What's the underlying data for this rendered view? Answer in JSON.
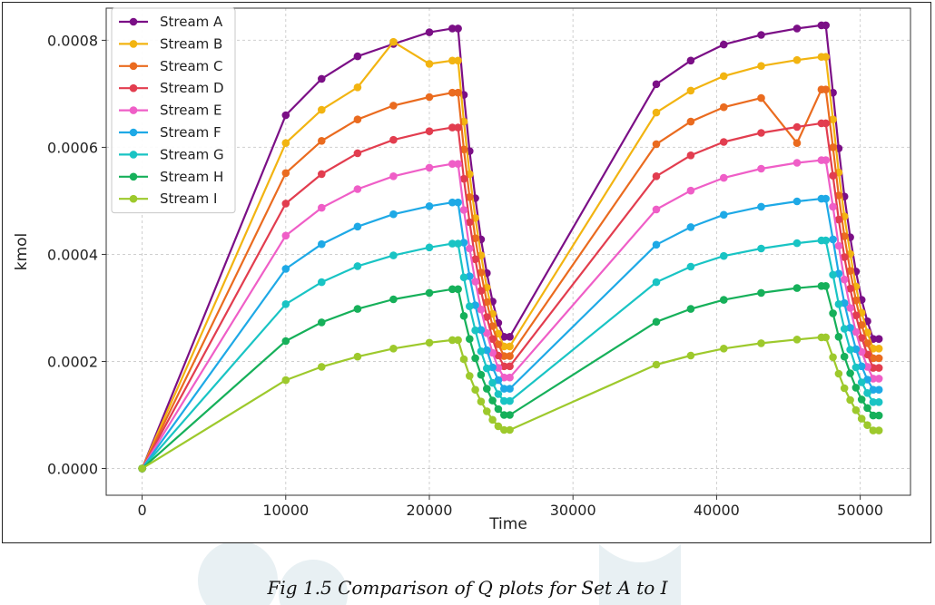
{
  "caption": "Fig 1.5 Comparison of Q plots for Set A to I",
  "chart_data": {
    "type": "line",
    "title": "",
    "xlabel": "Time",
    "ylabel": "kmol",
    "xlim": [
      -2500,
      53500
    ],
    "ylim": [
      -5e-05,
      0.00086
    ],
    "xticks": [
      0,
      10000,
      20000,
      30000,
      40000,
      50000
    ],
    "yticks": [
      0.0,
      0.0002,
      0.0004,
      0.0006,
      0.0008
    ],
    "ytick_labels": [
      "0.0000",
      "0.0002",
      "0.0004",
      "0.0006",
      "0.0008"
    ],
    "grid": true,
    "legend_position": "top-left",
    "x": [
      0,
      10000,
      12500,
      15000,
      17500,
      20000,
      21600,
      22000,
      22400,
      22800,
      23200,
      23600,
      24000,
      24400,
      24800,
      25200,
      25600,
      35800,
      38200,
      40500,
      43100,
      45600,
      47300,
      47600,
      48100,
      48500,
      48900,
      49300,
      49700,
      50100,
      50500,
      50900,
      51300
    ],
    "series": [
      {
        "name": "Stream A",
        "color": "#7b0f86",
        "values": [
          0,
          0.00066,
          0.000728,
          0.00077,
          0.000793,
          0.000815,
          0.000822,
          0.000822,
          0.000698,
          0.000593,
          0.000505,
          0.000428,
          0.000365,
          0.000312,
          0.000272,
          0.000246,
          0.000246,
          0.000718,
          0.000762,
          0.000792,
          0.00081,
          0.000822,
          0.000828,
          0.000828,
          0.000702,
          0.000598,
          0.000508,
          0.000432,
          0.000368,
          0.000315,
          0.000275,
          0.000242,
          0.000242
        ]
      },
      {
        "name": "Stream B",
        "color": "#f2b411",
        "values": [
          0,
          0.000608,
          0.00067,
          0.000712,
          0.000797,
          0.000756,
          0.000762,
          0.000762,
          0.000648,
          0.00055,
          0.000468,
          0.000398,
          0.000338,
          0.000289,
          0.000252,
          0.000228,
          0.000228,
          0.000665,
          0.000706,
          0.000733,
          0.000752,
          0.000763,
          0.000769,
          0.000769,
          0.000652,
          0.000553,
          0.000471,
          0.000401,
          0.00034,
          0.000291,
          0.000254,
          0.000224,
          0.000224
        ]
      },
      {
        "name": "Stream C",
        "color": "#ea6b1f",
        "values": [
          0,
          0.000552,
          0.000612,
          0.000652,
          0.000678,
          0.000694,
          0.000702,
          0.000702,
          0.000596,
          0.000507,
          0.00043,
          0.000366,
          0.000311,
          0.000266,
          0.000232,
          0.00021,
          0.00021,
          0.000606,
          0.000648,
          0.000675,
          0.000692,
          0.000608,
          0.000708,
          0.000708,
          0.0006,
          0.00051,
          0.000434,
          0.000369,
          0.000314,
          0.000268,
          0.000234,
          0.000206,
          0.000206
        ]
      },
      {
        "name": "Stream D",
        "color": "#e23d4f",
        "values": [
          0,
          0.000495,
          0.00055,
          0.000589,
          0.000614,
          0.00063,
          0.000637,
          0.000637,
          0.000541,
          0.00046,
          0.000391,
          0.000332,
          0.000283,
          0.000242,
          0.000211,
          0.000191,
          0.000191,
          0.000546,
          0.000585,
          0.00061,
          0.000627,
          0.000638,
          0.000645,
          0.000645,
          0.000547,
          0.000465,
          0.000395,
          0.000336,
          0.000286,
          0.000244,
          0.000213,
          0.000188,
          0.000188
        ]
      },
      {
        "name": "Stream E",
        "color": "#ef5ec7",
        "values": [
          0,
          0.000435,
          0.000487,
          0.000522,
          0.000546,
          0.000562,
          0.000569,
          0.000569,
          0.000483,
          0.000411,
          0.000349,
          0.000297,
          0.000253,
          0.000216,
          0.000188,
          0.00017,
          0.00017,
          0.000484,
          0.000519,
          0.000543,
          0.00056,
          0.000571,
          0.000576,
          0.000576,
          0.000489,
          0.000416,
          0.000353,
          0.0003,
          0.000255,
          0.000218,
          0.00019,
          0.000168,
          0.000168
        ]
      },
      {
        "name": "Stream F",
        "color": "#1ea9e6",
        "values": [
          0,
          0.000373,
          0.000419,
          0.000452,
          0.000475,
          0.00049,
          0.000497,
          0.000497,
          0.000422,
          0.000359,
          0.000305,
          0.000259,
          0.000221,
          0.000189,
          0.000165,
          0.000149,
          0.000149,
          0.000418,
          0.000451,
          0.000474,
          0.000489,
          0.000499,
          0.000504,
          0.000504,
          0.000428,
          0.000364,
          0.000309,
          0.000263,
          0.000223,
          0.000191,
          0.000166,
          0.000147,
          0.000147
        ]
      },
      {
        "name": "Stream G",
        "color": "#19c4c4",
        "values": [
          0,
          0.000307,
          0.000348,
          0.000378,
          0.000398,
          0.000413,
          0.00042,
          0.00042,
          0.000357,
          0.000303,
          0.000258,
          0.000219,
          0.000187,
          0.00016,
          0.000139,
          0.000126,
          0.000126,
          0.000348,
          0.000377,
          0.000397,
          0.000411,
          0.000421,
          0.000426,
          0.000426,
          0.000362,
          0.000307,
          0.000261,
          0.000222,
          0.000189,
          0.000161,
          0.000141,
          0.000124,
          0.000124
        ]
      },
      {
        "name": "Stream H",
        "color": "#16b05a",
        "values": [
          0,
          0.000238,
          0.000273,
          0.000298,
          0.000316,
          0.000328,
          0.000335,
          0.000335,
          0.000285,
          0.000242,
          0.000206,
          0.000175,
          0.000149,
          0.000127,
          0.000111,
          0.0001,
          0.0001,
          0.000274,
          0.000298,
          0.000315,
          0.000328,
          0.000337,
          0.000341,
          0.000341,
          0.00029,
          0.000246,
          0.000209,
          0.000178,
          0.000151,
          0.000129,
          0.000113,
          9.9e-05,
          9.9e-05
        ]
      },
      {
        "name": "Stream I",
        "color": "#9dc92c",
        "values": [
          0,
          0.000165,
          0.00019,
          0.000209,
          0.000224,
          0.000235,
          0.00024,
          0.00024,
          0.000204,
          0.000173,
          0.000147,
          0.000125,
          0.000107,
          9.1e-05,
          7.9e-05,
          7.2e-05,
          7.2e-05,
          0.000194,
          0.000211,
          0.000224,
          0.000234,
          0.000241,
          0.000245,
          0.000245,
          0.000208,
          0.000177,
          0.00015,
          0.000128,
          0.000109,
          9.3e-05,
          8.1e-05,
          7.1e-05,
          7.1e-05
        ]
      }
    ]
  }
}
